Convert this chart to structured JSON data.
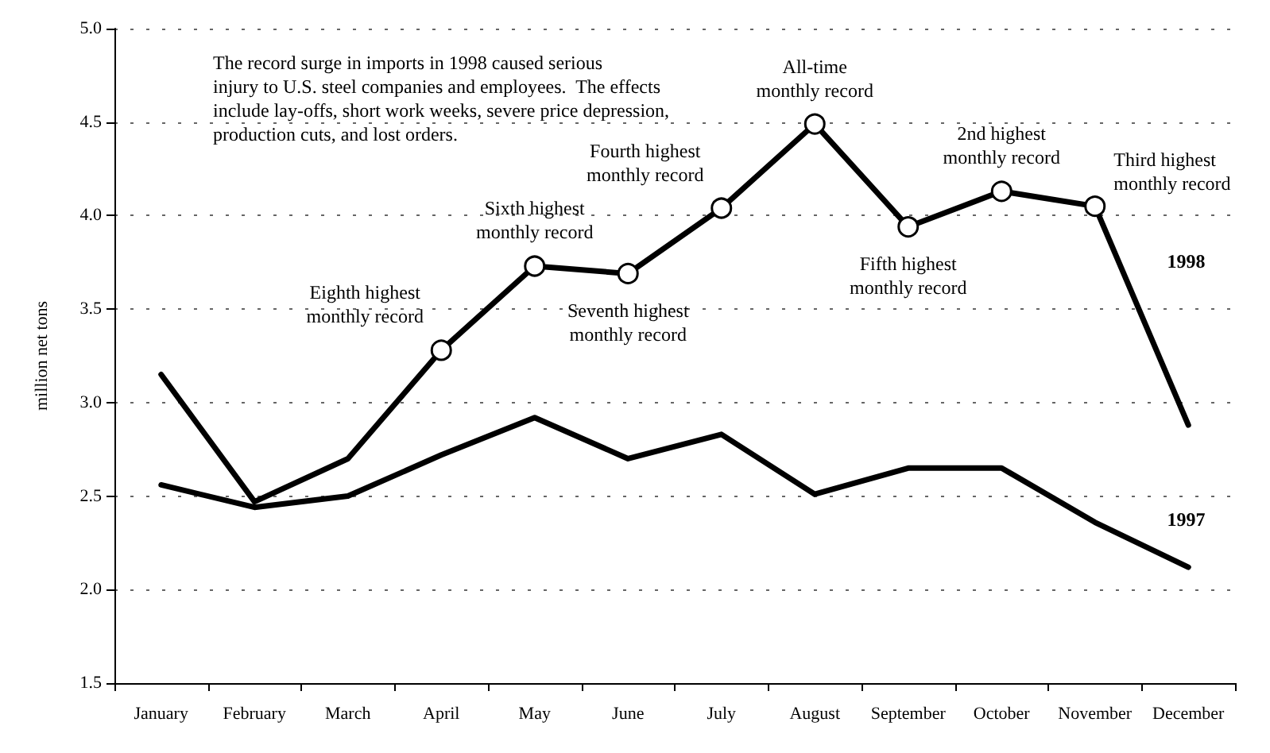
{
  "chart_data": {
    "type": "line",
    "ylabel": "million net tons",
    "categories": [
      "January",
      "February",
      "March",
      "April",
      "May",
      "June",
      "July",
      "August",
      "September",
      "October",
      "November",
      "December"
    ],
    "series": [
      {
        "name": "1998",
        "color": "#000000",
        "marker": "circle",
        "values": [
          3.15,
          2.47,
          2.7,
          3.28,
          3.73,
          3.69,
          4.04,
          4.49,
          3.94,
          4.13,
          4.05,
          2.88
        ]
      },
      {
        "name": "1997",
        "color": "#000000",
        "marker": "none",
        "values": [
          2.56,
          2.44,
          2.5,
          2.72,
          2.92,
          2.7,
          2.83,
          2.51,
          2.65,
          2.65,
          2.36,
          2.12
        ]
      }
    ],
    "ylim": [
      1.5,
      5
    ],
    "yticks": [
      {
        "value": 1.5,
        "label": "1.5"
      },
      {
        "value": 2,
        "label": "2.0"
      },
      {
        "value": 2.5,
        "label": "2.5"
      },
      {
        "value": 3,
        "label": "3.0"
      },
      {
        "value": 3.5,
        "label": "3.5"
      },
      {
        "value": 4,
        "label": "4.0"
      },
      {
        "value": 4.5,
        "label": "4.5"
      },
      {
        "value": 5,
        "label": "5.0"
      }
    ],
    "grid": "y",
    "legend": false,
    "line_style": "solid",
    "annotations": [
      "The record surge in imports in 1998 caused serious\ninjury to U.S. steel companies and employees.  The effects\ninclude lay-offs, short work weeks, severe price depression,\nproduction cuts, and lost orders.",
      {
        "text": "Eighth highest\nmonthly record",
        "x": "April",
        "y": 3.28
      },
      {
        "text": "Sixth highest\nmonthly record",
        "x": "May",
        "y": 3.73
      },
      {
        "text": "Seventh highest\nmonthly record",
        "x": "June",
        "y": 3.69
      },
      {
        "text": "Fourth highest\nmonthly record",
        "x": "July",
        "y": 4.04
      },
      {
        "text": "All-time\nmonthly record",
        "x": "August",
        "y": 4.49
      },
      {
        "text": "Fifth highest\nmonthly record",
        "x": "September",
        "y": 3.94
      },
      {
        "text": "2nd highest\nmonthly record",
        "x": "October",
        "y": 4.13
      },
      {
        "text": "Third highest\nmonthly record",
        "x": "November",
        "y": 4.05
      }
    ]
  }
}
